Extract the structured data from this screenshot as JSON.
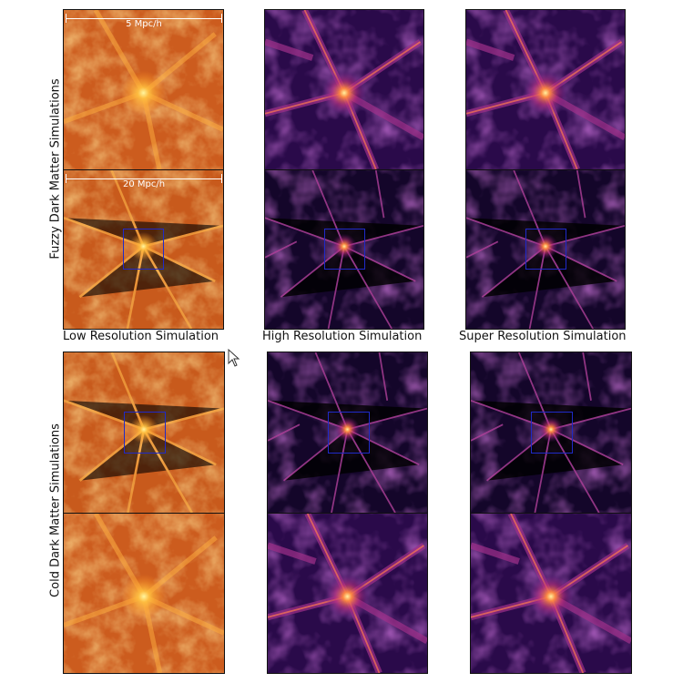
{
  "row_labels": {
    "fuzzy": "Fuzzy Dark Matter Simulations",
    "cold": "Cold Dark Matter Simulations"
  },
  "column_labels": {
    "low": "Low Resolution Simulation",
    "high": "High Resolution Simulation",
    "super": "Super Resolution Simulation"
  },
  "scale_bars": {
    "zoom": "5 Mpc/h",
    "full": "20 Mpc/h"
  },
  "colors": {
    "low_res_base": "#d2641f",
    "high_res_base": "#2a0a4a",
    "zoom_box": "#1f2ac8",
    "frame": "#111111"
  },
  "icons": {
    "cursor": "mouse-pointer-icon"
  }
}
